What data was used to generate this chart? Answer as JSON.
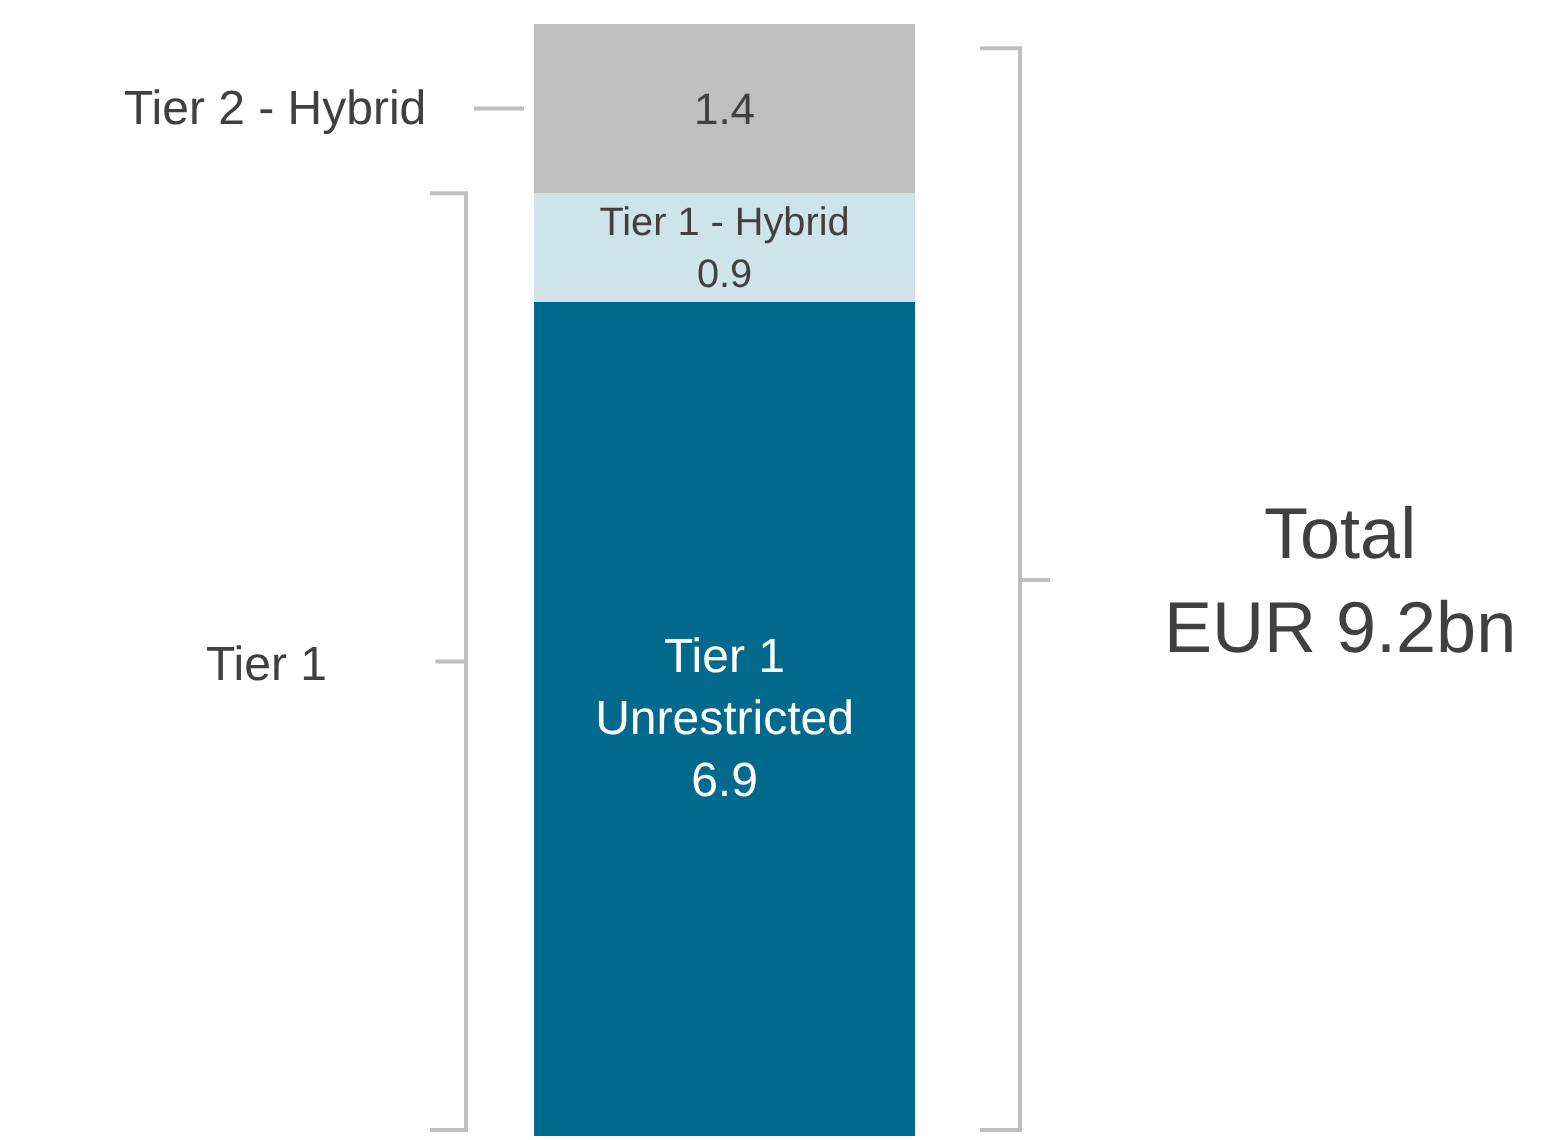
{
  "chart_data": {
    "type": "bar",
    "stacked": true,
    "categories": [
      null
    ],
    "data_labels": true,
    "legend": false,
    "series": [
      {
        "name": "Tier 1 Unrestricted",
        "color": "#00698c",
        "values": [
          6.9
        ]
      },
      {
        "name": "Tier 1 - Hybrid",
        "color": "#cfe3eb",
        "values": [
          0.9
        ]
      },
      {
        "color": "#bfbfbf",
        "values": [
          1.4
        ]
      }
    ],
    "annotations": [
      "Tier 2 - Hybrid",
      "Tier 1",
      "Total\nEUR 9.2bn"
    ]
  }
}
